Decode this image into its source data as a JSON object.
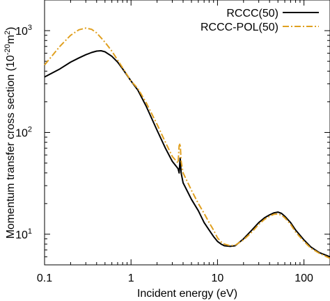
{
  "chart_data": {
    "type": "line",
    "title": "",
    "xlabel": "Incident energy (eV)",
    "ylabel": "Momentum transfer cross section (10",
    "ylabel_exp": "-20",
    "ylabel_mid": "m",
    "ylabel_exp2": "2",
    "ylabel_end": ")",
    "xscale": "log",
    "yscale": "log",
    "xlim": [
      0.1,
      200
    ],
    "ylim": [
      5,
      2000
    ],
    "grid": false,
    "legend": "top-right",
    "xticks": [
      {
        "value": 0.1,
        "label": "0.1"
      },
      {
        "value": 1,
        "label": "1"
      },
      {
        "value": 10,
        "label": "10"
      },
      {
        "value": 100,
        "label": "100"
      }
    ],
    "yticks": [
      {
        "value": 10,
        "base": "10",
        "exp": "1"
      },
      {
        "value": 100,
        "base": "10",
        "exp": "2"
      },
      {
        "value": 1000,
        "base": "10",
        "exp": "3"
      }
    ],
    "series": [
      {
        "name": "RCCC(50)",
        "color": "#000000",
        "dash": "solid",
        "x": [
          0.1,
          0.15,
          0.2,
          0.25,
          0.3,
          0.35,
          0.4,
          0.45,
          0.5,
          0.6,
          0.7,
          0.8,
          1,
          1.2,
          1.5,
          2,
          2.5,
          3,
          3.5,
          3.6,
          3.7,
          3.8,
          4,
          5,
          6,
          7,
          8,
          9,
          10,
          11,
          12,
          14,
          16,
          20,
          25,
          30,
          35,
          40,
          45,
          50,
          55,
          60,
          70,
          80,
          100,
          120,
          150,
          200
        ],
        "y": [
          350,
          420,
          490,
          540,
          580,
          610,
          630,
          635,
          620,
          560,
          490,
          420,
          320,
          260,
          180,
          105,
          70,
          52,
          44,
          40,
          56,
          40,
          32,
          22,
          17,
          13,
          11,
          9.5,
          8.5,
          8,
          7.7,
          7.6,
          7.7,
          9,
          11,
          13,
          14.5,
          15.5,
          16.2,
          16.5,
          16,
          15,
          13,
          11,
          8.8,
          7.5,
          6.6,
          6
        ]
      },
      {
        "name": "RCCC-POL(50)",
        "color": "#e0a020",
        "dash": "dashdot",
        "x": [
          0.1,
          0.15,
          0.2,
          0.25,
          0.3,
          0.35,
          0.4,
          0.5,
          0.6,
          0.8,
          1,
          1.2,
          1.5,
          2,
          2.5,
          3,
          3.5,
          3.6,
          3.7,
          3.8,
          4,
          5,
          6,
          7,
          8,
          9,
          10,
          11,
          12,
          14,
          16,
          20,
          25,
          30,
          35,
          40,
          45,
          50,
          55,
          60,
          70,
          80,
          100,
          120,
          150,
          200
        ],
        "y": [
          460,
          700,
          900,
          1020,
          1060,
          1030,
          950,
          770,
          630,
          430,
          320,
          270,
          195,
          120,
          80,
          58,
          50,
          74,
          78,
          52,
          40,
          27,
          20,
          16,
          13,
          11,
          9.2,
          8.4,
          8,
          7.7,
          7.8,
          8.8,
          10.5,
          12.5,
          14,
          15,
          15.7,
          15.8,
          15.4,
          14.5,
          12.5,
          10.5,
          8.5,
          7.3,
          6.5,
          5.8
        ]
      }
    ]
  }
}
